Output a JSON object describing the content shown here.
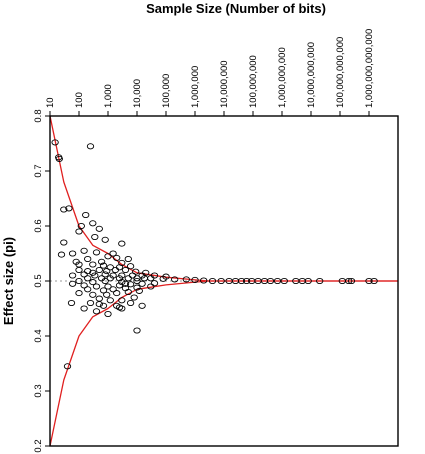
{
  "chart_data": {
    "type": "scatter",
    "title": "Sample Size (Number of bits)",
    "xlabel": "",
    "ylabel": "Effect size (pi)",
    "x_scale": "log",
    "xlim": [
      10,
      10000000000000
    ],
    "ylim": [
      0.2,
      0.8
    ],
    "x_ticks": [
      {
        "value": 10,
        "label": "10"
      },
      {
        "value": 100,
        "label": "100"
      },
      {
        "value": 1000,
        "label": "1,000"
      },
      {
        "value": 10000,
        "label": "10,000"
      },
      {
        "value": 100000,
        "label": "100,000"
      },
      {
        "value": 1000000,
        "label": "1,000,000"
      },
      {
        "value": 10000000,
        "label": "10,000,000"
      },
      {
        "value": 100000000,
        "label": "100,000,000"
      },
      {
        "value": 1000000000,
        "label": "1,000,000,000"
      },
      {
        "value": 10000000000,
        "label": "10,000,000,000"
      },
      {
        "value": 100000000000,
        "label": "100,000,000,000"
      },
      {
        "value": 1000000000000,
        "label": "1,000,000,000,000"
      }
    ],
    "y_ticks": [
      {
        "value": 0.2,
        "label": "0.2"
      },
      {
        "value": 0.3,
        "label": "0.3"
      },
      {
        "value": 0.4,
        "label": "0.4"
      },
      {
        "value": 0.5,
        "label": "0.5"
      },
      {
        "value": 0.6,
        "label": "0.6"
      },
      {
        "value": 0.7,
        "label": "0.7"
      },
      {
        "value": 0.8,
        "label": "0.8"
      }
    ],
    "reference_line": {
      "y": 0.5,
      "style": "dotted"
    },
    "funnel_curves": {
      "color": "#e02020",
      "upper": [
        {
          "x": 10,
          "y": 0.8
        },
        {
          "x": 30,
          "y": 0.68
        },
        {
          "x": 100,
          "y": 0.6
        },
        {
          "x": 300,
          "y": 0.565
        },
        {
          "x": 1000,
          "y": 0.55
        },
        {
          "x": 3000,
          "y": 0.53
        },
        {
          "x": 10000,
          "y": 0.515
        },
        {
          "x": 100000,
          "y": 0.507
        },
        {
          "x": 1000000,
          "y": 0.502
        },
        {
          "x": 3000000,
          "y": 0.5
        }
      ],
      "lower": [
        {
          "x": 10,
          "y": 0.2
        },
        {
          "x": 30,
          "y": 0.32
        },
        {
          "x": 100,
          "y": 0.4
        },
        {
          "x": 300,
          "y": 0.435
        },
        {
          "x": 1000,
          "y": 0.45
        },
        {
          "x": 3000,
          "y": 0.47
        },
        {
          "x": 10000,
          "y": 0.485
        },
        {
          "x": 100000,
          "y": 0.493
        },
        {
          "x": 1000000,
          "y": 0.498
        },
        {
          "x": 3000000,
          "y": 0.5
        }
      ]
    },
    "marker": {
      "shape": "open-circle",
      "color": "#000000"
    },
    "points": [
      [
        15,
        0.752
      ],
      [
        20,
        0.725
      ],
      [
        21,
        0.722
      ],
      [
        30,
        0.63
      ],
      [
        45,
        0.632
      ],
      [
        250,
        0.745
      ],
      [
        170,
        0.62
      ],
      [
        120,
        0.6
      ],
      [
        300,
        0.605
      ],
      [
        500,
        0.595
      ],
      [
        100,
        0.59
      ],
      [
        350,
        0.58
      ],
      [
        800,
        0.575
      ],
      [
        3000,
        0.568
      ],
      [
        30,
        0.57
      ],
      [
        150,
        0.555
      ],
      [
        25,
        0.548
      ],
      [
        60,
        0.55
      ],
      [
        400,
        0.552
      ],
      [
        1500,
        0.55
      ],
      [
        1000,
        0.545
      ],
      [
        200,
        0.54
      ],
      [
        2000,
        0.542
      ],
      [
        5000,
        0.54
      ],
      [
        80,
        0.535
      ],
      [
        600,
        0.535
      ],
      [
        3000,
        0.533
      ],
      [
        100,
        0.53
      ],
      [
        300,
        0.53
      ],
      [
        700,
        0.528
      ],
      [
        1200,
        0.525
      ],
      [
        2500,
        0.525
      ],
      [
        6000,
        0.527
      ],
      [
        100,
        0.52
      ],
      [
        200,
        0.518
      ],
      [
        500,
        0.52
      ],
      [
        900,
        0.518
      ],
      [
        1800,
        0.52
      ],
      [
        4000,
        0.52
      ],
      [
        9000,
        0.517
      ],
      [
        20000,
        0.515
      ],
      [
        60,
        0.51
      ],
      [
        150,
        0.512
      ],
      [
        350,
        0.51
      ],
      [
        800,
        0.512
      ],
      [
        1500,
        0.51
      ],
      [
        3000,
        0.51
      ],
      [
        7000,
        0.51
      ],
      [
        15000,
        0.51
      ],
      [
        40000,
        0.51
      ],
      [
        100000,
        0.508
      ],
      [
        200,
        0.505
      ],
      [
        600,
        0.505
      ],
      [
        1200,
        0.505
      ],
      [
        2500,
        0.505
      ],
      [
        5000,
        0.505
      ],
      [
        10000,
        0.505
      ],
      [
        30000,
        0.505
      ],
      [
        80000,
        0.504
      ],
      [
        200000,
        0.503
      ],
      [
        500000,
        0.503
      ],
      [
        1000000,
        0.502
      ],
      [
        2000000,
        0.501
      ],
      [
        4000000,
        0.5
      ],
      [
        8000000,
        0.5
      ],
      [
        15000000,
        0.5
      ],
      [
        25000000,
        0.5
      ],
      [
        40000000,
        0.5
      ],
      [
        60000000,
        0.5
      ],
      [
        90000000,
        0.5
      ],
      [
        150000000,
        0.5
      ],
      [
        250000000,
        0.5
      ],
      [
        400000000,
        0.5
      ],
      [
        700000000,
        0.5
      ],
      [
        1200000000,
        0.5
      ],
      [
        3000000000,
        0.5
      ],
      [
        5000000000,
        0.5
      ],
      [
        8000000000,
        0.5
      ],
      [
        20000000000,
        0.5
      ],
      [
        120000000000,
        0.5
      ],
      [
        200000000000,
        0.5
      ],
      [
        250000000000,
        0.5
      ],
      [
        1000000000000,
        0.5
      ],
      [
        1500000000000,
        0.5
      ],
      [
        10000,
        0.5
      ],
      [
        3000,
        0.498
      ],
      [
        800,
        0.5
      ],
      [
        300,
        0.498
      ],
      [
        100,
        0.5
      ],
      [
        60,
        0.495
      ],
      [
        150,
        0.492
      ],
      [
        400,
        0.49
      ],
      [
        1000,
        0.49
      ],
      [
        2500,
        0.492
      ],
      [
        6000,
        0.494
      ],
      [
        15000,
        0.495
      ],
      [
        40000,
        0.496
      ],
      [
        200,
        0.485
      ],
      [
        700,
        0.483
      ],
      [
        1500,
        0.485
      ],
      [
        4000,
        0.487
      ],
      [
        10000,
        0.488
      ],
      [
        30000,
        0.49
      ],
      [
        100,
        0.478
      ],
      [
        300,
        0.475
      ],
      [
        900,
        0.475
      ],
      [
        2000,
        0.478
      ],
      [
        5000,
        0.48
      ],
      [
        12000,
        0.482
      ],
      [
        500,
        0.468
      ],
      [
        1200,
        0.465
      ],
      [
        3000,
        0.465
      ],
      [
        8000,
        0.47
      ],
      [
        250,
        0.46
      ],
      [
        700,
        0.455
      ],
      [
        2000,
        0.455
      ],
      [
        6000,
        0.46
      ],
      [
        15000,
        0.455
      ],
      [
        55,
        0.46
      ],
      [
        150,
        0.45
      ],
      [
        400,
        0.445
      ],
      [
        1000,
        0.44
      ],
      [
        3000,
        0.45
      ],
      [
        10000,
        0.41
      ],
      [
        40,
        0.345
      ],
      [
        2500,
        0.452
      ],
      [
        500,
        0.458
      ],
      [
        18000,
        0.505
      ],
      [
        4000,
        0.495
      ],
      [
        300,
        0.515
      ]
    ]
  }
}
